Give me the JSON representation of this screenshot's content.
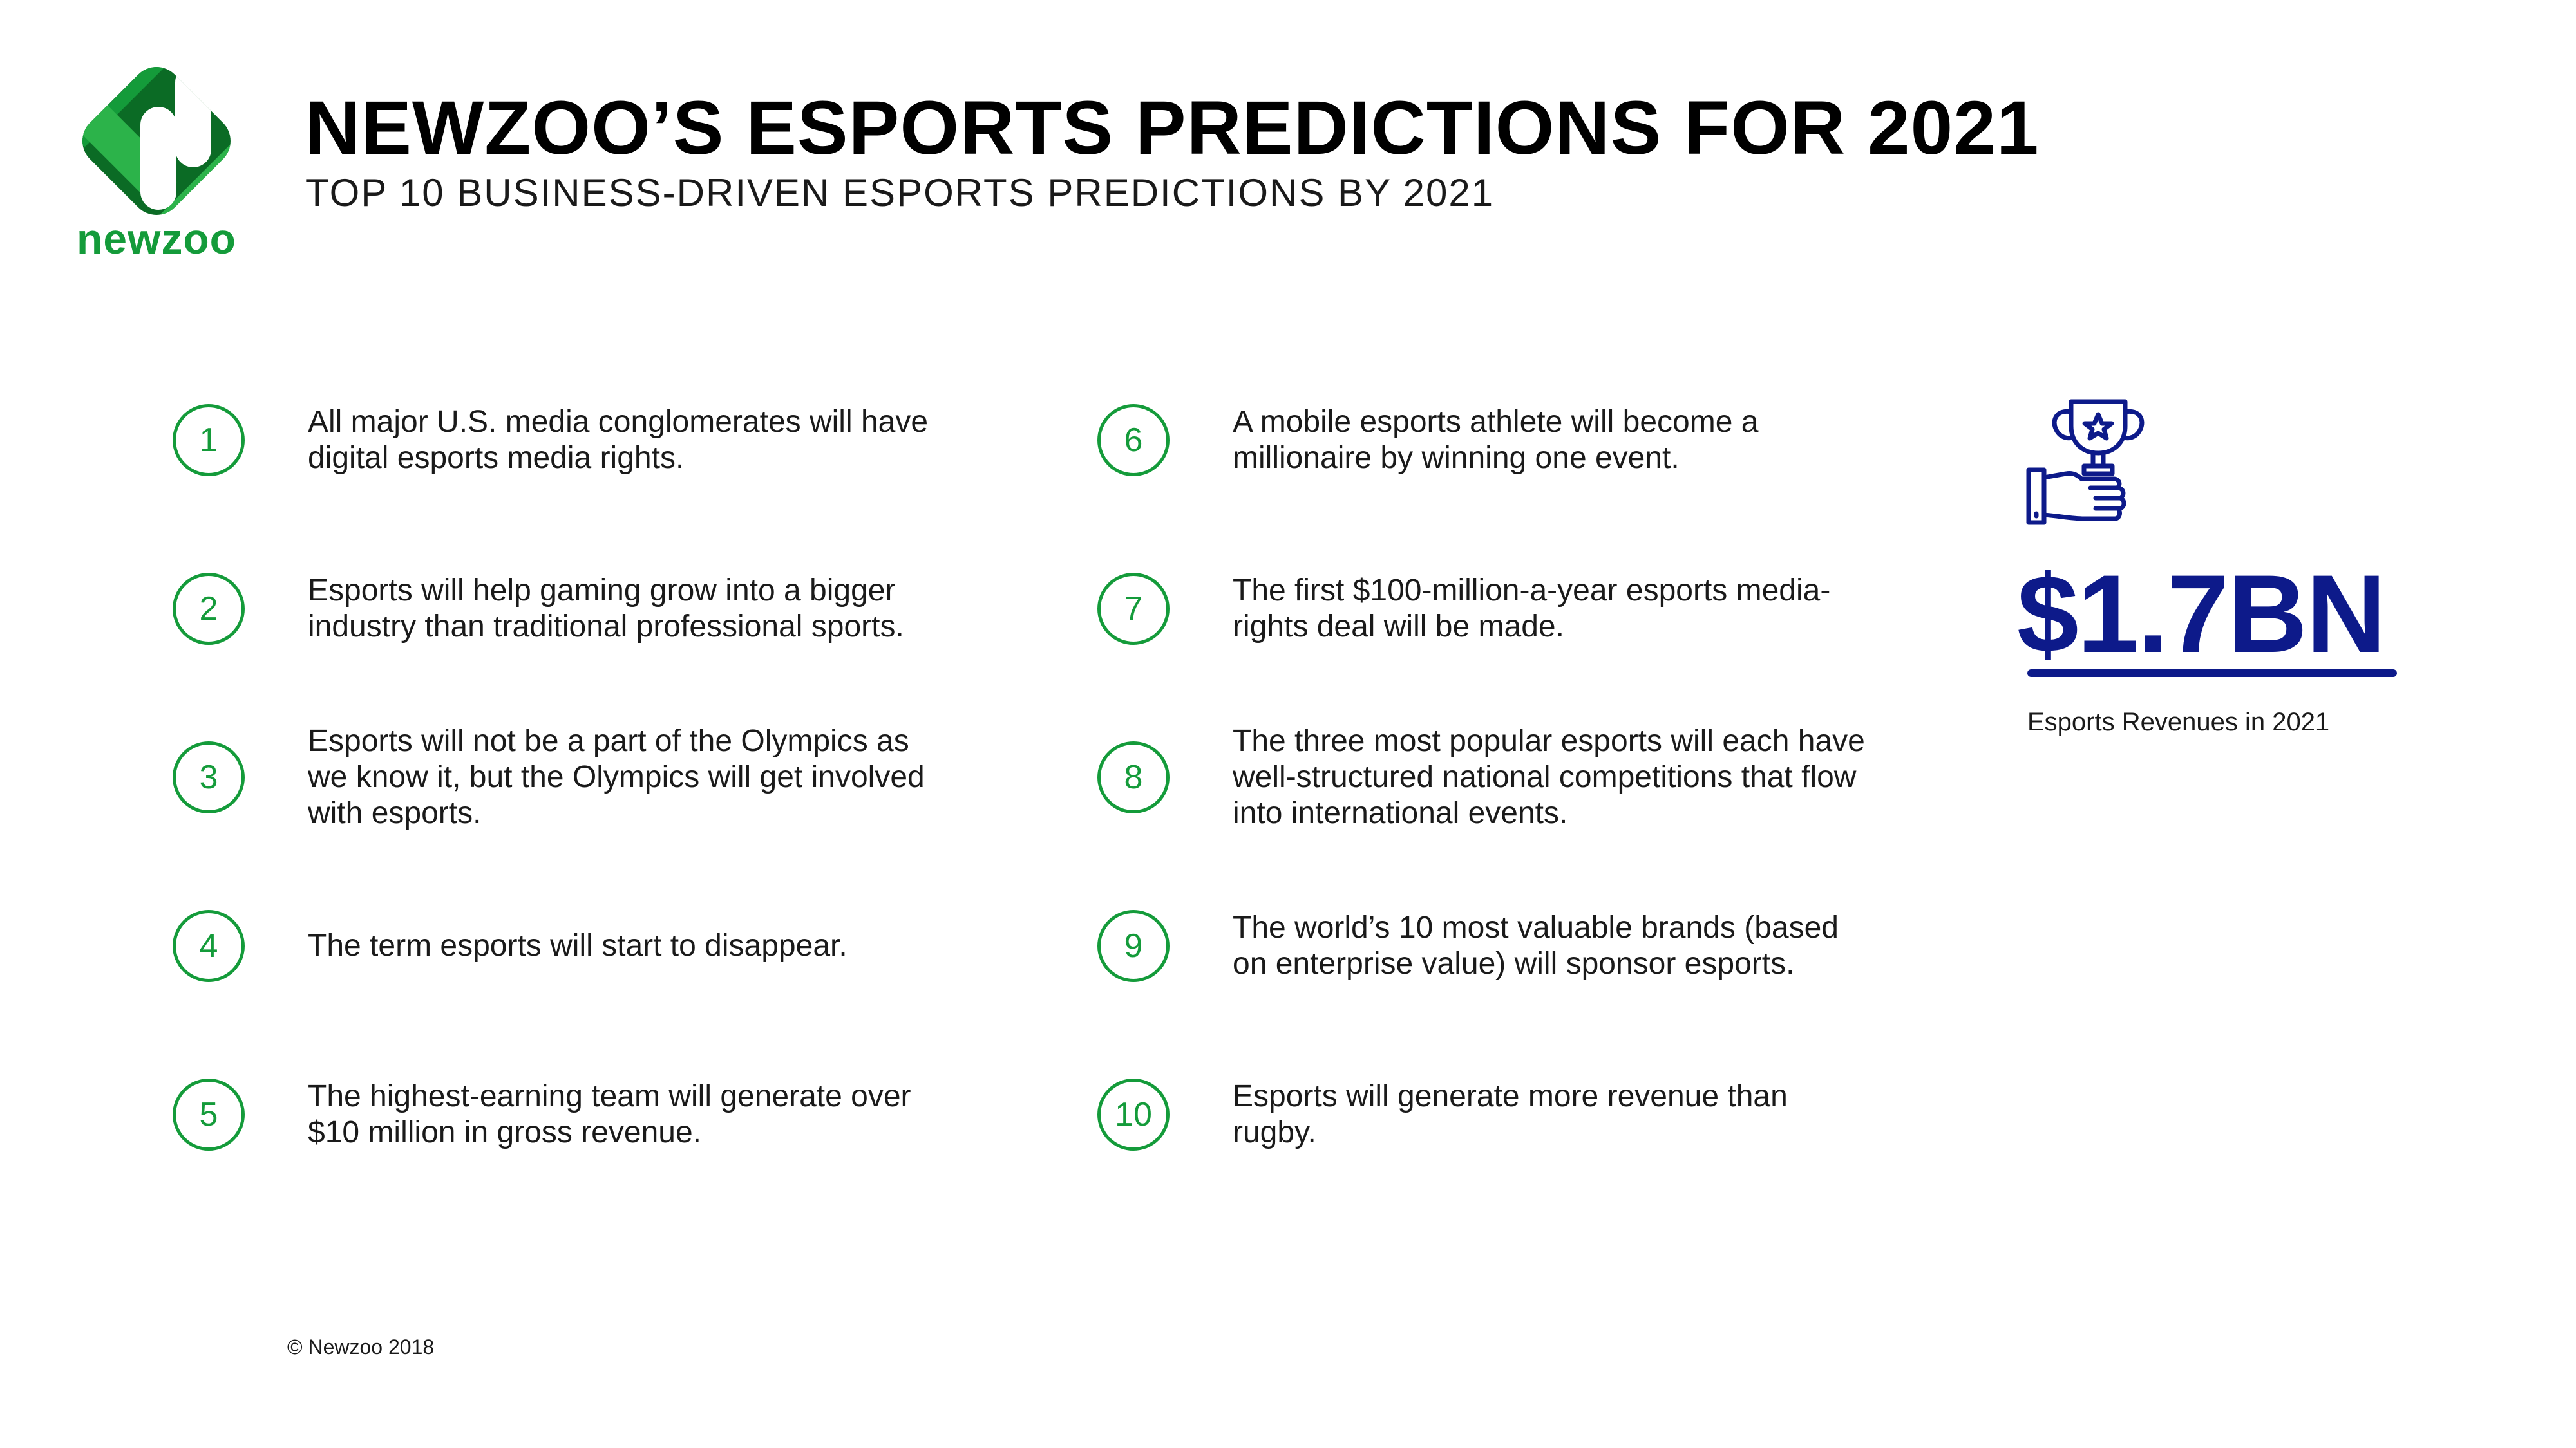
{
  "logo": {
    "wordmark": "newzoo"
  },
  "header": {
    "title": "NEWZOO’S ESPORTS PREDICTIONS FOR 2021",
    "subtitle": "TOP 10 BUSINESS-DRIVEN ESPORTS PREDICTIONS BY 2021"
  },
  "predictions": [
    {
      "number": "1",
      "text": "All major U.S. media conglomerates will have digital esports media rights."
    },
    {
      "number": "2",
      "text": "Esports will help gaming grow into a bigger industry than traditional professional sports."
    },
    {
      "number": "3",
      "text": "Esports will not be a part of the Olympics as we know it, but the Olympics will get involved with esports."
    },
    {
      "number": "4",
      "text": "The term esports will start to disappear."
    },
    {
      "number": "5",
      "text": "The highest-earning team will generate over $10 million in gross revenue."
    },
    {
      "number": "6",
      "text": "A mobile esports athlete will become a millionaire by winning one event."
    },
    {
      "number": "7",
      "text": "The first $100-million-a-year esports media-rights deal will be made."
    },
    {
      "number": "8",
      "text": "The three most popular esports will each have well-structured national competitions that flow into international events."
    },
    {
      "number": "9",
      "text": "The world’s 10 most valuable brands (based on enterprise value) will sponsor esports."
    },
    {
      "number": "10",
      "text": "Esports will generate more revenue than rugby."
    }
  ],
  "stat": {
    "icon": "trophy-hand-icon",
    "value": "$1.7BN",
    "label": "Esports Revenues in 2021"
  },
  "footer": {
    "copyright": "© Newzoo 2018"
  },
  "colors": {
    "brand_green": "#149b3a",
    "brand_green_light": "#2cb34a",
    "brand_green_dark": "#0b6b25",
    "stat_blue": "#0d1a8a"
  }
}
